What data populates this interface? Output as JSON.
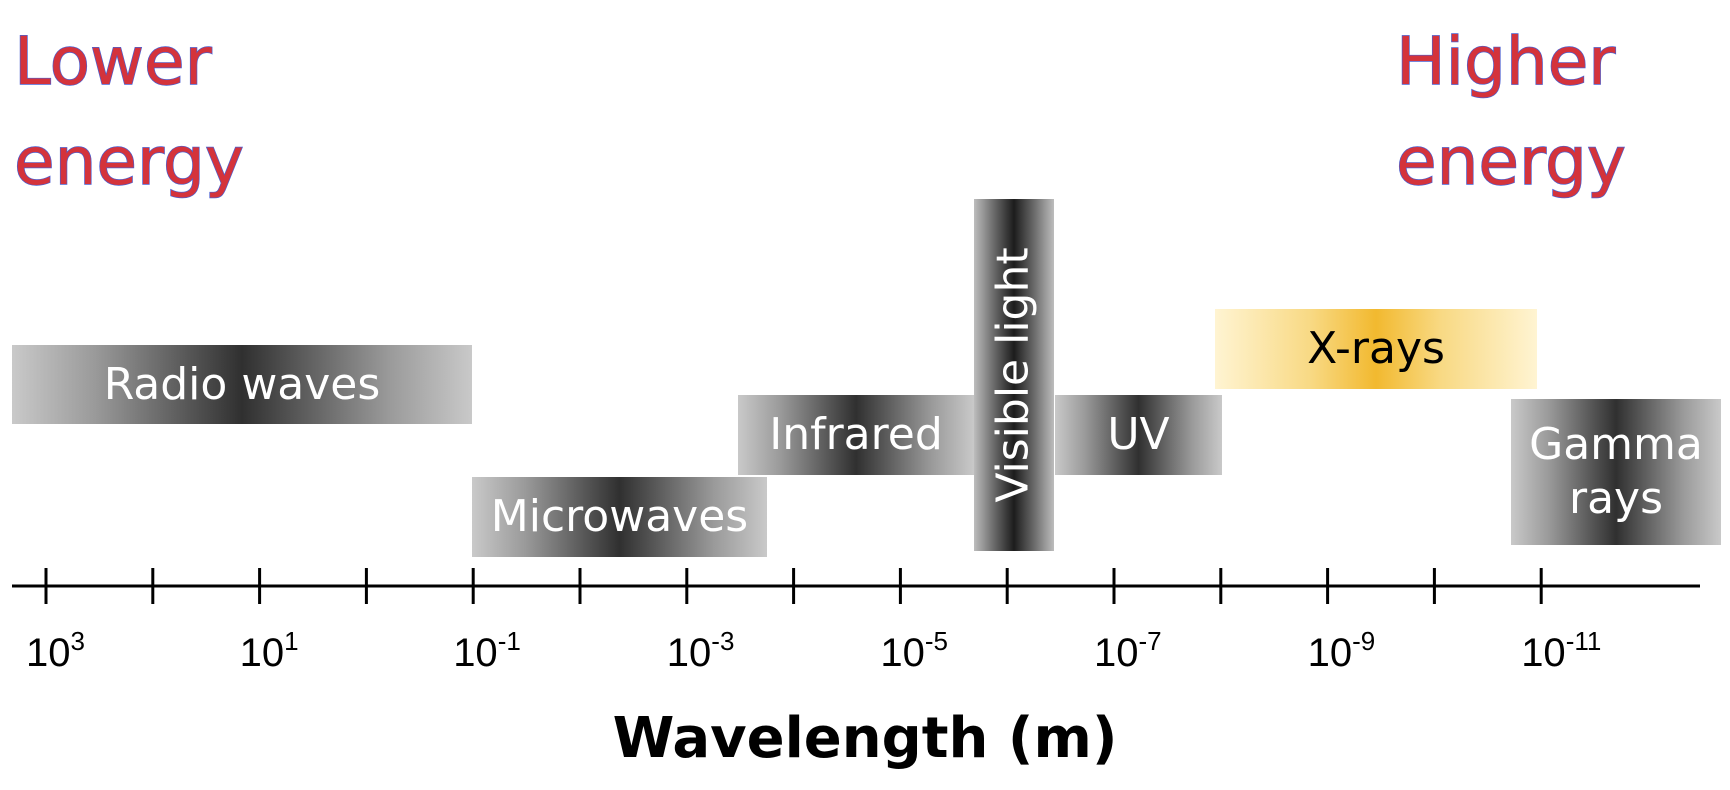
{
  "energy_labels": {
    "low": {
      "line1": "Lower",
      "line2": "energy"
    },
    "high": {
      "line1": "Higher",
      "line2": "energy"
    }
  },
  "bands": {
    "radio": "Radio waves",
    "microwaves": "Microwaves",
    "infrared": "Infrared",
    "visible": "Visible light",
    "uv": "UV",
    "xrays": "X-rays",
    "gamma_line1": "Gamma",
    "gamma_line2": "rays"
  },
  "axis": {
    "title": "Wavelength (m)",
    "tick_base": "10",
    "labeled_exponents": [
      "3",
      "1",
      "-1",
      "-3",
      "-5",
      "-7",
      "-9",
      "-11"
    ],
    "line_color": "#000000"
  },
  "colors": {
    "energy_text": "#d4333b",
    "energy_outline": "#4a5fd0",
    "xray_accent": "#f2b92f",
    "band_dark": "#303030"
  }
}
